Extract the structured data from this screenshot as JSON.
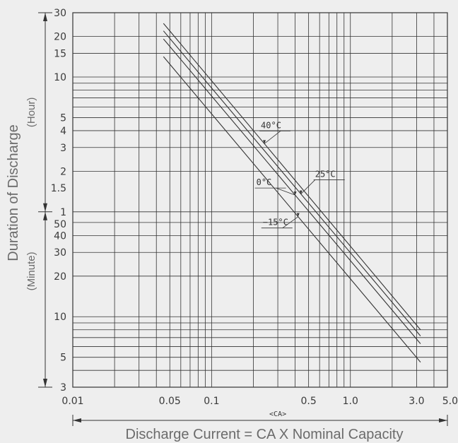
{
  "chart_data": {
    "type": "line",
    "xscale": "log",
    "yscale": "log",
    "xlim": [
      0.01,
      5.0
    ],
    "ylim_minutes": [
      3,
      1800
    ],
    "x_tick_labels": [
      "0.01",
      "0.05",
      "0.1",
      "0.5",
      "1.0",
      "3.0",
      "5.0"
    ],
    "x_tick_values": [
      0.01,
      0.05,
      0.1,
      0.5,
      1.0,
      3.0,
      5.0
    ],
    "y_hour_tick_labels": [
      "30",
      "20",
      "15",
      "10",
      "5",
      "4",
      "3",
      "2",
      "1.5",
      "1"
    ],
    "y_hour_tick_values": [
      30,
      20,
      15,
      10,
      5,
      4,
      3,
      2,
      1.5,
      1
    ],
    "y_minute_tick_labels": [
      "50",
      "40",
      "30",
      "20",
      "10",
      "5",
      "3"
    ],
    "y_minute_tick_values": [
      50,
      40,
      30,
      20,
      10,
      5,
      3
    ],
    "ylabel": "Duration of Discharge",
    "ylabel_hour": "(Hour)",
    "ylabel_minute": "(Minute)",
    "xlabel": "Discharge Current = CA X Nominal Capacity",
    "xunit": "<CA>",
    "grid": true,
    "series": [
      {
        "name": "40°C",
        "x": [
          0.045,
          3.2
        ],
        "y_minutes": [
          1500,
          8.0
        ],
        "label_at": 0.24
      },
      {
        "name": "25°C",
        "x": [
          0.045,
          3.2
        ],
        "y_minutes": [
          1320,
          7.2
        ],
        "label_at": 0.44
      },
      {
        "name": "0°C",
        "x": [
          0.045,
          3.2
        ],
        "y_minutes": [
          1150,
          6.3
        ],
        "label_at": 0.4
      },
      {
        "name": "−15°C",
        "x": [
          0.045,
          3.2
        ],
        "y_minutes": [
          850,
          4.6
        ],
        "label_at": 0.42
      }
    ],
    "colors": {
      "background": "#eeeeee",
      "grid": "#333333",
      "line": "#333333",
      "label": "#6b6b6b"
    }
  }
}
